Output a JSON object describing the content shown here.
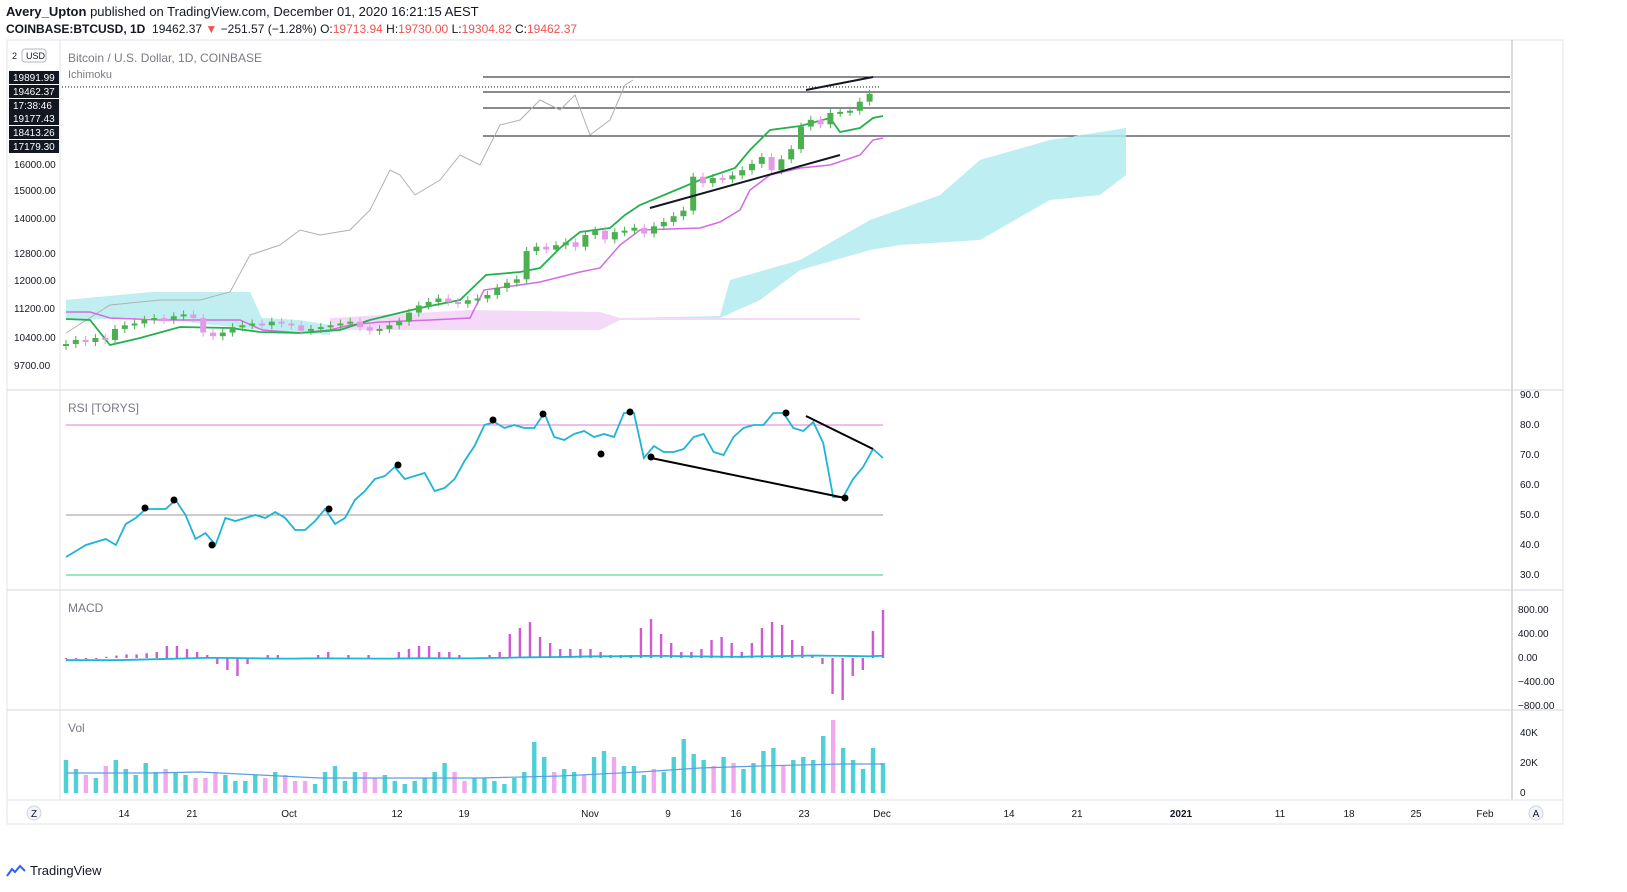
{
  "header": {
    "user": "Avery_Upton",
    "published": "published on TradingView.com, December 01, 2020 16:21:15 AEST",
    "symbol": "COINBASE:BTCUSD, 1D",
    "last": "19462.37",
    "change_arrow": "▼",
    "change": "−251.57 (−1.28%)",
    "o_label": "O:",
    "o_value": "19713.94",
    "h_label": "H:",
    "h_value": "19730.00",
    "l_label": "L:",
    "l_value": "19304.82",
    "c_label": "C:",
    "c_value": "19462.37"
  },
  "main_pane": {
    "title": "Bitcoin / U.S. Dollar, 1D, COINBASE",
    "indicator": "Ichimoku",
    "currency_badge": "USD",
    "scale_corner": "2",
    "price_ticks": [
      "16000.00",
      "15000.00",
      "14000.00",
      "12800.00",
      "12000.00",
      "11200.00",
      "10400.00",
      "9700.00"
    ],
    "price_tags": [
      "19891.99",
      "19462.37",
      "17:38:46",
      "19177.43",
      "18413.26",
      "17179.30"
    ]
  },
  "rsi_pane": {
    "title": "RSI [TORYS]",
    "ticks": [
      "90.0",
      "80.0",
      "70.0",
      "60.0",
      "50.0",
      "40.0",
      "30.0"
    ]
  },
  "macd_pane": {
    "title": "MACD",
    "ticks": [
      "800.00",
      "400.00",
      "0.00",
      "−400.00",
      "−800.00"
    ]
  },
  "vol_pane": {
    "title": "Vol",
    "ticks": [
      "40K",
      "20K",
      "0"
    ]
  },
  "time_axis": {
    "labels": [
      "14",
      "21",
      "Oct",
      "12",
      "19",
      "Nov",
      "9",
      "16",
      "23",
      "Dec",
      "14",
      "21",
      "2021",
      "11",
      "18",
      "25",
      "Feb"
    ],
    "left_button": "Z",
    "right_button": "A"
  },
  "footer": {
    "brand": "TradingView"
  },
  "colors": {
    "up": "#4caf50",
    "down": "#e59ae8",
    "tenkan": "#22b14c",
    "kijun": "#d36be3",
    "cloud_bull": "#b2ebee",
    "cloud_bear": "#f3cff7",
    "rsi": "#1eb4d4",
    "macd_hist": "#d05ad6",
    "macd_line": "#1eb4d4",
    "vol_up": "#4dd0d6",
    "vol_down": "#f0a8ee"
  },
  "chart_data": [
    {
      "type": "candlestick",
      "title": "Bitcoin / U.S. Dollar, 1D, COINBASE",
      "x_start": "2020-09-08",
      "x_end": "2020-12-01",
      "ohlc_close_approx": [
        10250,
        10350,
        10300,
        10400,
        10350,
        10650,
        10750,
        10800,
        10900,
        10950,
        10900,
        11000,
        11050,
        10950,
        10550,
        10450,
        10550,
        10700,
        10750,
        10800,
        10750,
        10850,
        10800,
        10750,
        10600,
        10650,
        10700,
        10750,
        10800,
        10850,
        10700,
        10600,
        10650,
        10750,
        10850,
        11100,
        11300,
        11400,
        11500,
        11400,
        11350,
        11450,
        11500,
        11600,
        11800,
        11950,
        12050,
        12900,
        13050,
        12950,
        13100,
        13200,
        13050,
        13450,
        13600,
        13300,
        13550,
        13600,
        13700,
        13500,
        13750,
        13900,
        14100,
        14300,
        15550,
        15300,
        15500,
        15450,
        15600,
        15800,
        16050,
        16350,
        15800,
        16250,
        16700,
        17700,
        18000,
        17800,
        18300,
        18350,
        18400,
        18800,
        19150,
        18600,
        17300,
        17550,
        18050,
        18500,
        19700,
        19462
      ],
      "horizontal_levels": [
        19891.99,
        19462.37,
        19177.43,
        18413.26,
        17179.3
      ],
      "ylim": [
        9700,
        19900
      ]
    },
    {
      "type": "line",
      "title": "RSI [TORYS]",
      "ylim": [
        30,
        90
      ],
      "levels": [
        80,
        50,
        30
      ],
      "values": [
        36,
        38,
        40,
        41,
        42,
        40,
        47,
        49,
        52,
        52,
        52,
        55,
        50,
        42,
        44,
        40,
        49,
        48,
        49,
        50,
        49,
        51,
        49,
        45,
        45,
        48,
        52,
        47,
        49,
        55,
        58,
        62,
        63,
        66,
        62,
        63,
        64,
        58,
        59,
        62,
        68,
        73,
        80,
        81,
        79,
        80,
        79,
        79,
        84,
        76,
        75,
        77,
        78,
        76,
        77,
        76,
        84,
        84,
        69,
        73,
        71,
        71,
        72,
        76,
        77,
        71,
        70,
        76,
        79,
        80,
        80,
        84,
        84,
        79,
        78,
        81,
        74,
        56,
        56,
        62,
        66,
        72,
        69
      ]
    },
    {
      "type": "bar",
      "title": "MACD",
      "ylim": [
        -800,
        800
      ],
      "histogram": [
        0,
        0,
        0,
        0,
        20,
        40,
        60,
        60,
        80,
        100,
        200,
        200,
        150,
        100,
        50,
        -100,
        -200,
        -300,
        -100,
        0,
        50,
        50,
        0,
        0,
        0,
        50,
        100,
        0,
        50,
        0,
        50,
        0,
        0,
        100,
        150,
        200,
        200,
        100,
        100,
        50,
        0,
        0,
        50,
        100,
        400,
        500,
        600,
        350,
        250,
        150,
        150,
        150,
        150,
        100,
        50,
        50,
        50,
        500,
        650,
        400,
        250,
        100,
        100,
        150,
        300,
        350,
        250,
        100,
        250,
        500,
        600,
        550,
        300,
        200,
        50,
        -100,
        -600,
        -700,
        -300,
        -200,
        450,
        800
      ],
      "macd_line": [
        -200,
        -210,
        -220,
        -220,
        -200,
        -150,
        -100,
        -50,
        0,
        50,
        100,
        100,
        80,
        50,
        20,
        0,
        0,
        20,
        30,
        20,
        10,
        10,
        0,
        0,
        20,
        40,
        50,
        50,
        30,
        50,
        80,
        100,
        150,
        180,
        200,
        220,
        250,
        300,
        320,
        330,
        350,
        370,
        380,
        360,
        320,
        300,
        280,
        260,
        250,
        300,
        330,
        350,
        400,
        420,
        400,
        380,
        350,
        330,
        400
      ]
    },
    {
      "type": "bar",
      "title": "Vol",
      "ylim": [
        0,
        50000
      ],
      "values": [
        22000,
        16000,
        12000,
        10000,
        18000,
        22000,
        16000,
        12000,
        20000,
        14000,
        16000,
        14000,
        12000,
        10000,
        10000,
        14000,
        12000,
        8000,
        8000,
        12000,
        10000,
        14000,
        12000,
        8000,
        8000,
        6000,
        14000,
        18000,
        8000,
        14000,
        14000,
        10000,
        12000,
        8000,
        6000,
        8000,
        10000,
        14000,
        20000,
        14000,
        8000,
        10000,
        10000,
        8000,
        6000,
        10000,
        14000,
        34000,
        24000,
        14000,
        16000,
        14000,
        12000,
        24000,
        28000,
        24000,
        18000,
        18000,
        12000,
        16000,
        14000,
        24000,
        36000,
        26000,
        22000,
        18000,
        24000,
        20000,
        16000,
        20000,
        28000,
        30000,
        18000,
        22000,
        24000,
        22000,
        38000,
        52000,
        30000,
        22000,
        16000,
        30000,
        20000
      ]
    }
  ]
}
